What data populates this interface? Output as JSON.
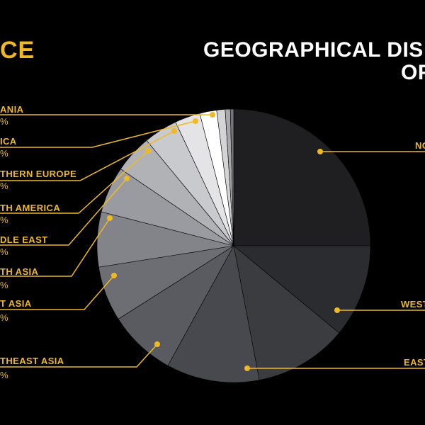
{
  "header": {
    "source_word": "CE",
    "title_line1": "GEOGRAPHICAL DIS",
    "title_line2": "OF"
  },
  "colors": {
    "accent": "#f0b923",
    "background": "#000000",
    "label": "#f0b923",
    "value_text": "#f0b923"
  },
  "chart_data": {
    "type": "pie",
    "start": "top, clockwise",
    "slices": [
      {
        "label": "NO",
        "visible_value": "",
        "share": 0.25,
        "color": "#1f1f21"
      },
      {
        "label": "WEST",
        "visible_value": "",
        "share": 0.11,
        "color": "#2b2c2f"
      },
      {
        "label": "EAST",
        "visible_value": "",
        "share": 0.11,
        "color": "#3b3c40"
      },
      {
        "label": "THEAST ASIA",
        "visible_value": "%",
        "share": 0.11,
        "color": "#48494e"
      },
      {
        "label": "T ASIA",
        "visible_value": "%",
        "share": 0.08,
        "color": "#5a5b60"
      },
      {
        "label": "TH ASIA",
        "visible_value": "%",
        "share": 0.065,
        "color": "#6d6e73"
      },
      {
        "label": "DLE EAST",
        "visible_value": "%",
        "share": 0.065,
        "color": "#83848a"
      },
      {
        "label": "TH AMERICA",
        "visible_value": "%",
        "share": 0.055,
        "color": "#9a9ba0"
      },
      {
        "label": "THERN EUROPE",
        "visible_value": "%",
        "share": 0.045,
        "color": "#b1b2b6"
      },
      {
        "label": "ICA",
        "visible_value": "%",
        "share": 0.04,
        "color": "#c9cacd"
      },
      {
        "label": "ANIA",
        "visible_value": "%",
        "share": 0.03,
        "color": "#e4e4e6"
      },
      {
        "label": "",
        "visible_value": "",
        "share": 0.02,
        "color": "#ffffff"
      },
      {
        "label": "",
        "visible_value": "",
        "share": 0.01,
        "color": "#d4d4d6"
      },
      {
        "label": "",
        "visible_value": "",
        "share": 0.006,
        "color": "#a8a8ab"
      },
      {
        "label": "",
        "visible_value": "",
        "share": 0.004,
        "color": "#75767a"
      }
    ]
  }
}
